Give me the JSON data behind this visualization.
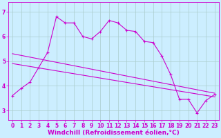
{
  "xlabel": "Windchill (Refroidissement éolien,°C)",
  "bg_color": "#cceeff",
  "line_color": "#cc00cc",
  "grid_color": "#aacccc",
  "x_ticks": [
    0,
    1,
    2,
    3,
    4,
    5,
    6,
    7,
    8,
    9,
    10,
    11,
    12,
    13,
    14,
    15,
    16,
    17,
    18,
    19,
    20,
    21,
    22,
    23
  ],
  "y_ticks": [
    3,
    4,
    5,
    6,
    7
  ],
  "ylim": [
    2.6,
    7.4
  ],
  "xlim": [
    -0.5,
    23.5
  ],
  "series1_x": [
    0,
    1,
    2,
    3,
    4,
    5,
    6,
    7,
    8,
    9,
    10,
    11,
    12,
    13,
    14,
    15,
    16,
    17,
    18,
    19,
    20,
    21,
    22,
    23
  ],
  "series1_y": [
    3.6,
    3.9,
    4.15,
    4.75,
    5.35,
    6.8,
    6.55,
    6.55,
    6.0,
    5.9,
    6.2,
    6.65,
    6.55,
    6.25,
    6.2,
    5.8,
    5.75,
    5.2,
    4.45,
    3.45,
    3.45,
    2.9,
    3.4,
    3.65
  ],
  "series2_x": [
    0,
    23
  ],
  "series2_y": [
    5.3,
    3.7
  ],
  "series3_x": [
    0,
    23
  ],
  "series3_y": [
    4.9,
    3.55
  ],
  "tick_fontsize": 5.5,
  "xlabel_fontsize": 6.5
}
